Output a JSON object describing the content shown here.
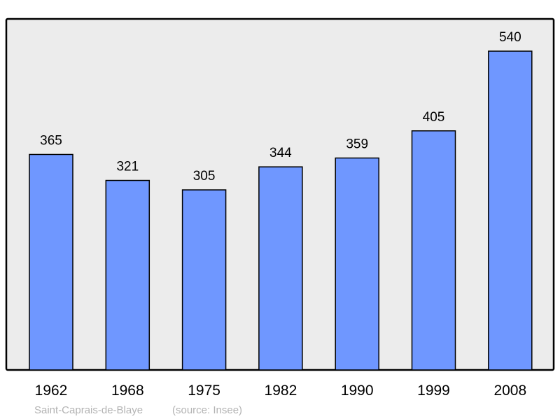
{
  "chart_data": {
    "type": "bar",
    "categories": [
      "1962",
      "1968",
      "1975",
      "1982",
      "1990",
      "1999",
      "2008"
    ],
    "values": [
      365,
      321,
      305,
      344,
      359,
      405,
      540
    ],
    "data_labels": [
      "365",
      "321",
      "305",
      "344",
      "359",
      "405",
      "540"
    ],
    "ylim": [
      0,
      540
    ],
    "grid": false,
    "legend": "none",
    "colors": {
      "bar": "#6f97ff",
      "plot_background": "#ececec",
      "frame": "#000000",
      "footer_text": "#b3b3b3"
    }
  },
  "footer": {
    "place": "Saint-Caprais-de-Blaye",
    "source": "(source: Insee)"
  }
}
